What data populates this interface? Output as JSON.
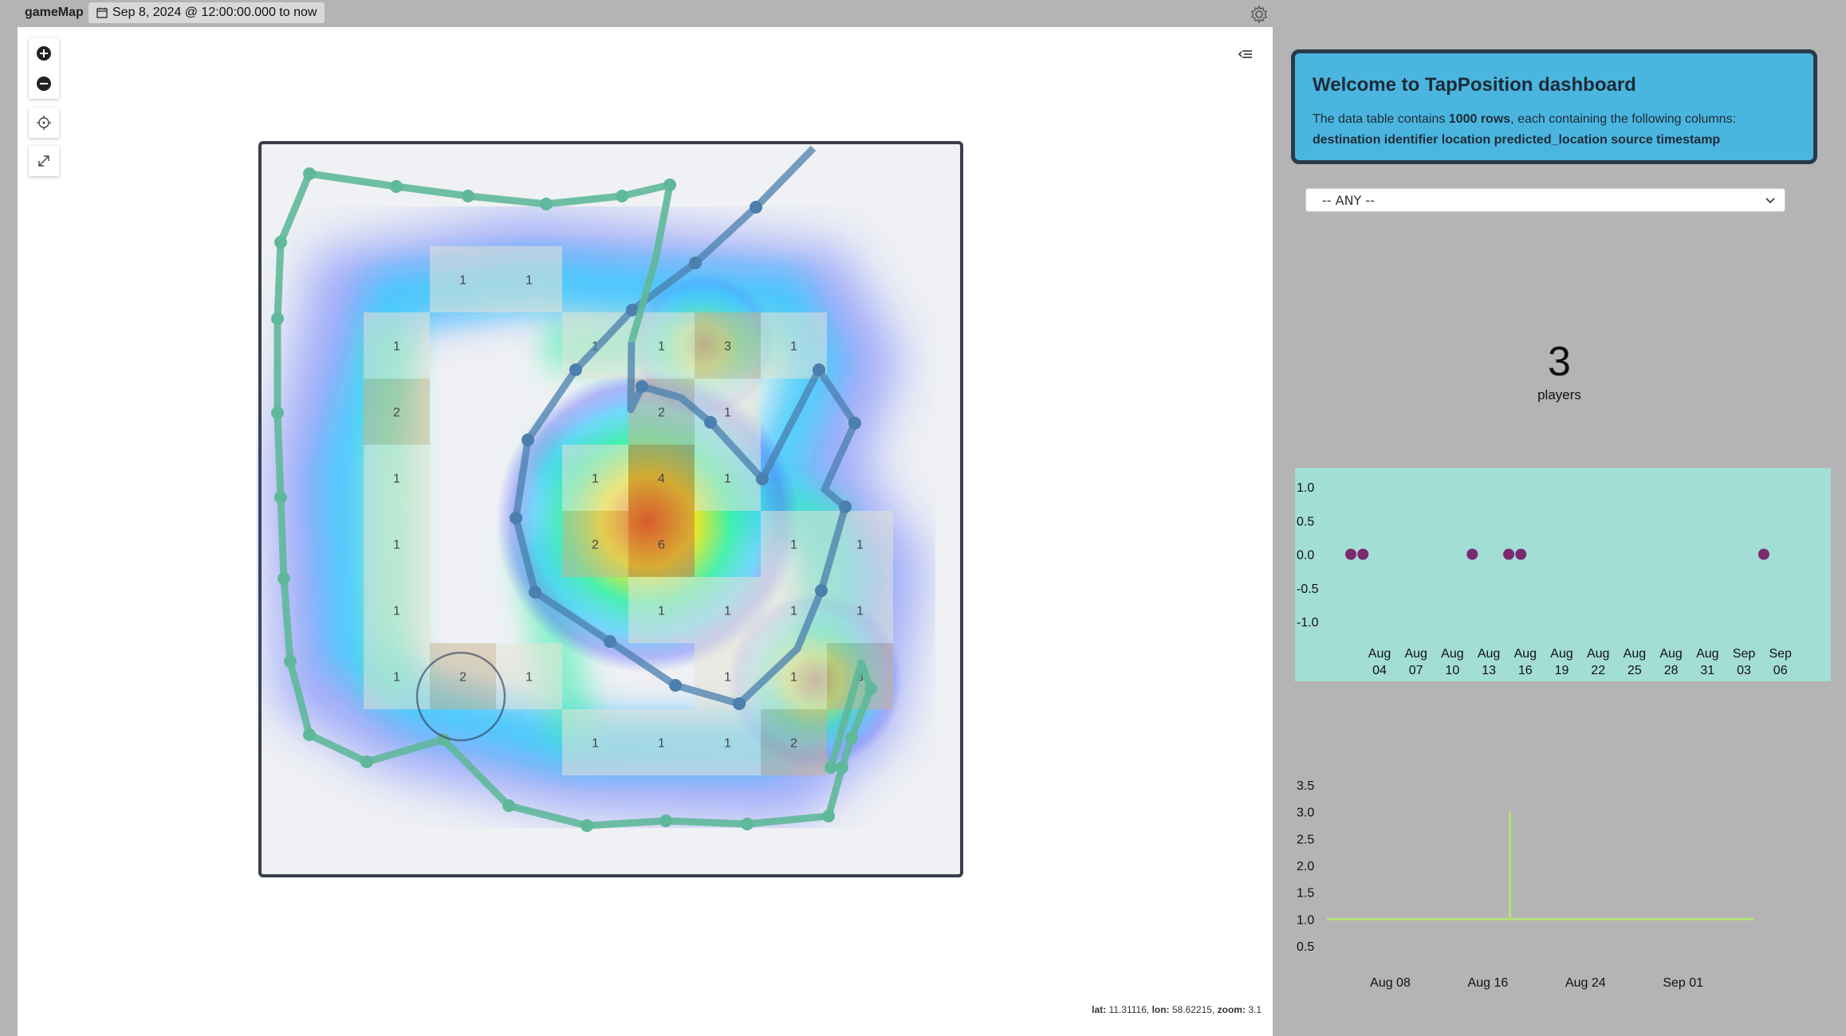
{
  "header": {
    "app_name": "gameMap",
    "time_range": "Sep 8, 2024 @ 12:00:00.000 to now"
  },
  "map": {
    "controls": {
      "zoom_in": "zoom-in-icon",
      "zoom_out": "zoom-out-icon",
      "locate": "crosshair-icon",
      "fullscreen": "expand-icon",
      "collapse": "collapse-panel-icon"
    },
    "grid_counts": [
      {
        "col": 2,
        "row": 0,
        "count": "1"
      },
      {
        "col": 3,
        "row": 0,
        "count": "1"
      },
      {
        "col": 1,
        "row": 1,
        "count": "1"
      },
      {
        "col": 4,
        "row": 1,
        "count": "1"
      },
      {
        "col": 5,
        "row": 1,
        "count": "1"
      },
      {
        "col": 6,
        "row": 1,
        "count": "3"
      },
      {
        "col": 7,
        "row": 1,
        "count": "1"
      },
      {
        "col": 1,
        "row": 2,
        "count": "2"
      },
      {
        "col": 5,
        "row": 2,
        "count": "2"
      },
      {
        "col": 6,
        "row": 2,
        "count": "1"
      },
      {
        "col": 1,
        "row": 3,
        "count": "1"
      },
      {
        "col": 4,
        "row": 3,
        "count": "1"
      },
      {
        "col": 5,
        "row": 3,
        "count": "4"
      },
      {
        "col": 6,
        "row": 3,
        "count": "1"
      },
      {
        "col": 1,
        "row": 4,
        "count": "1"
      },
      {
        "col": 4,
        "row": 4,
        "count": "2"
      },
      {
        "col": 5,
        "row": 4,
        "count": "6"
      },
      {
        "col": 7,
        "row": 4,
        "count": "1"
      },
      {
        "col": 8,
        "row": 4,
        "count": "1"
      },
      {
        "col": 1,
        "row": 5,
        "count": "1"
      },
      {
        "col": 5,
        "row": 5,
        "count": "1"
      },
      {
        "col": 6,
        "row": 5,
        "count": "1"
      },
      {
        "col": 7,
        "row": 5,
        "count": "1"
      },
      {
        "col": 8,
        "row": 5,
        "count": "1"
      },
      {
        "col": 1,
        "row": 6,
        "count": "1"
      },
      {
        "col": 2,
        "row": 6,
        "count": "2"
      },
      {
        "col": 3,
        "row": 6,
        "count": "1"
      },
      {
        "col": 6,
        "row": 6,
        "count": "1"
      },
      {
        "col": 7,
        "row": 6,
        "count": "1"
      },
      {
        "col": 8,
        "row": 6,
        "count": "3"
      },
      {
        "col": 4,
        "row": 7,
        "count": "1"
      },
      {
        "col": 5,
        "row": 7,
        "count": "1"
      },
      {
        "col": 6,
        "row": 7,
        "count": "1"
      },
      {
        "col": 7,
        "row": 7,
        "count": "2"
      }
    ],
    "coords": {
      "lat_label": "lat:",
      "lat": "11.31116,",
      "lon_label": "lon:",
      "lon": "58.62215,",
      "zoom_label": "zoom:",
      "zoom": "3.1"
    },
    "colors": {
      "track_green": "#5fb89a",
      "track_blue": "#4a7fae"
    }
  },
  "sidebar": {
    "welcome_title": "Welcome to TapPosition dashboard",
    "welcome_pre": "The data table contains ",
    "welcome_rows": "1000 rows",
    "welcome_post": ", each containing the following columns:",
    "welcome_columns": "destination identifier location predicted_location source timestamp",
    "filter_value": "-- ANY --",
    "kpi_value": "3",
    "kpi_label": "players",
    "colors": {
      "welcome_bg": "#4ab6e0",
      "scatter_bg": "#a3ded6",
      "scatter_dot": "#7a2a6e",
      "line": "#b3e27a"
    }
  },
  "chart_data": [
    {
      "type": "scatter",
      "title": "",
      "x": [
        "2024-08-04",
        "2024-08-05",
        "2024-08-14",
        "2024-08-17",
        "2024-08-18",
        "2024-09-07"
      ],
      "y": [
        0,
        0,
        0,
        0,
        0,
        0
      ],
      "ylim": [
        -1.0,
        1.0
      ],
      "y_ticks": [
        "1.0",
        "0.5",
        "0.0",
        "-0.5",
        "-1.0"
      ],
      "x_ticks": [
        [
          "Aug",
          "04"
        ],
        [
          "Aug",
          "07"
        ],
        [
          "Aug",
          "10"
        ],
        [
          "Aug",
          "13"
        ],
        [
          "Aug",
          "16"
        ],
        [
          "Aug",
          "19"
        ],
        [
          "Aug",
          "22"
        ],
        [
          "Aug",
          "25"
        ],
        [
          "Aug",
          "28"
        ],
        [
          "Aug",
          "31"
        ],
        [
          "Sep",
          "03"
        ],
        [
          "Sep",
          "06"
        ]
      ]
    },
    {
      "type": "line",
      "title": "",
      "x": [
        "2024-08-03",
        "2024-08-18",
        "2024-08-18",
        "2024-08-18",
        "2024-09-07"
      ],
      "y": [
        1,
        1,
        3,
        1,
        1
      ],
      "ylim": [
        0.5,
        3.5
      ],
      "y_ticks": [
        "3.5",
        "3.0",
        "2.5",
        "2.0",
        "1.5",
        "1.0",
        "0.5"
      ],
      "x_ticks": [
        "Aug 08",
        "Aug 16",
        "Aug 24",
        "Sep 01"
      ]
    }
  ]
}
